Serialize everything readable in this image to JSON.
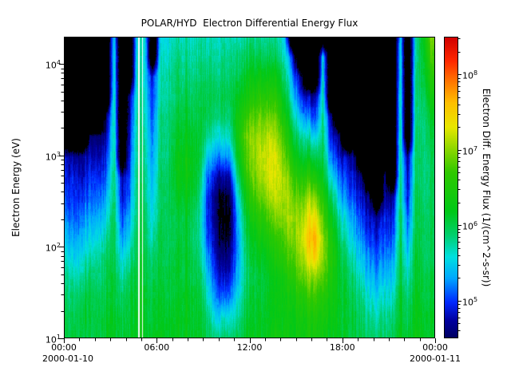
{
  "chart_data": {
    "type": "heatmap",
    "title": "POLAR/HYD  Electron Differential Energy Flux",
    "x": {
      "start_date": "2000-01-10",
      "end_date": "2000-01-11",
      "range_hours": [
        0,
        24
      ],
      "major_tick_hours": [
        0,
        6,
        12,
        18,
        24
      ],
      "major_tick_labels": [
        "00:00",
        "06:00",
        "12:00",
        "18:00",
        "00:00"
      ],
      "minor_tick_step_hours": 1
    },
    "y": {
      "label": "Electron Energy (eV)",
      "scale": "log",
      "range_log10_ev": [
        1.0,
        4.3
      ],
      "tick_exponents": [
        1,
        2,
        3,
        4
      ]
    },
    "colorbar": {
      "label": "Electron Diff. Energy Flux (1/(cm^2-s-sr))",
      "scale": "log",
      "range_log10": [
        4.5,
        8.5
      ],
      "tick_exponents": [
        5,
        6,
        7,
        8
      ]
    },
    "colormap": [
      [
        0.0,
        "#000060"
      ],
      [
        0.06,
        "#0000A0"
      ],
      [
        0.12,
        "#0028FF"
      ],
      [
        0.2,
        "#00A8FF"
      ],
      [
        0.27,
        "#00E0E0"
      ],
      [
        0.34,
        "#00D070"
      ],
      [
        0.42,
        "#00C818"
      ],
      [
        0.55,
        "#30C800"
      ],
      [
        0.63,
        "#90D800"
      ],
      [
        0.7,
        "#E8E800"
      ],
      [
        0.78,
        "#FFC000"
      ],
      [
        0.85,
        "#FF7800"
      ],
      [
        0.92,
        "#FF2800"
      ],
      [
        1.0,
        "#D00000"
      ]
    ],
    "black_below_log10": 4.45,
    "grid": {
      "time_step_hours": 0.5,
      "energy_bins": 16,
      "no_data_value": 0,
      "data_gap_hours": [
        [
          4.78,
          4.88
        ],
        [
          5.05,
          5.13
        ]
      ],
      "columns_note": "48 half-hour columns; each lists log10 flux for 16 log-spaced energy bins from 10 eV (first) to 2e4 eV (last); 0 = below scale (black)",
      "columns": [
        [
          6.0,
          6.0,
          5.9,
          5.8,
          5.6,
          5.4,
          5.2,
          5.0,
          4.9,
          4.8,
          0,
          0,
          0,
          0,
          0,
          0
        ],
        [
          6.1,
          6.0,
          5.9,
          5.7,
          5.5,
          5.3,
          5.1,
          5.0,
          4.9,
          4.7,
          0,
          0,
          0,
          0,
          0,
          0
        ],
        [
          6.0,
          6.1,
          6.0,
          5.8,
          5.6,
          5.4,
          5.2,
          5.0,
          4.8,
          4.7,
          0,
          0,
          0,
          0,
          0,
          0
        ],
        [
          6.0,
          6.0,
          6.0,
          5.9,
          5.7,
          5.5,
          5.3,
          5.1,
          5.0,
          4.8,
          4.6,
          0,
          0,
          0,
          0,
          0
        ],
        [
          6.1,
          6.1,
          6.0,
          5.9,
          5.8,
          5.6,
          5.4,
          5.2,
          5.0,
          4.8,
          4.6,
          0,
          0,
          0,
          0,
          0
        ],
        [
          6.1,
          6.1,
          6.0,
          6.0,
          5.9,
          5.7,
          5.5,
          5.3,
          5.1,
          4.9,
          4.7,
          4.5,
          0,
          0,
          0,
          0
        ],
        [
          6.2,
          6.2,
          6.1,
          6.1,
          6.0,
          6.0,
          6.0,
          5.9,
          5.9,
          5.8,
          5.8,
          5.7,
          5.7,
          5.6,
          5.6,
          5.5
        ],
        [
          6.0,
          6.0,
          5.9,
          5.7,
          5.5,
          5.2,
          5.0,
          4.8,
          4.7,
          0,
          0,
          0,
          0,
          0,
          0,
          0
        ],
        [
          6.1,
          6.0,
          6.0,
          5.9,
          5.7,
          5.5,
          5.3,
          5.1,
          5.0,
          4.9,
          4.8,
          4.7,
          4.6,
          0,
          0,
          0
        ],
        [
          6.3,
          6.3,
          6.2,
          6.2,
          6.1,
          6.1,
          6.0,
          6.0,
          6.0,
          5.9,
          5.9,
          5.9,
          5.8,
          5.8,
          5.8,
          5.7
        ],
        [
          6.2,
          6.2,
          6.2,
          6.1,
          6.1,
          6.0,
          6.0,
          5.9,
          5.9,
          5.8,
          5.8,
          5.7,
          5.7,
          5.6,
          5.6,
          5.6
        ],
        [
          6.1,
          6.0,
          6.0,
          5.9,
          5.8,
          5.6,
          5.5,
          5.4,
          5.3,
          5.2,
          5.1,
          5.0,
          4.9,
          4.8,
          0,
          0
        ],
        [
          6.2,
          6.1,
          6.1,
          6.0,
          6.0,
          6.0,
          5.9,
          5.9,
          5.9,
          5.8,
          5.8,
          5.8,
          5.7,
          5.7,
          5.6,
          5.5
        ],
        [
          6.2,
          6.2,
          6.1,
          6.1,
          6.0,
          6.0,
          6.0,
          6.0,
          6.0,
          5.9,
          5.9,
          5.9,
          5.8,
          5.8,
          5.7,
          5.6
        ],
        [
          6.2,
          6.2,
          6.1,
          6.1,
          6.1,
          6.0,
          6.0,
          6.1,
          6.2,
          6.2,
          6.1,
          6.0,
          5.9,
          5.9,
          5.8,
          5.7
        ],
        [
          6.2,
          6.2,
          6.2,
          6.1,
          6.1,
          6.1,
          6.1,
          6.2,
          6.3,
          6.3,
          6.2,
          6.1,
          6.0,
          5.9,
          5.8,
          5.7
        ],
        [
          6.2,
          6.2,
          6.2,
          6.1,
          6.1,
          6.0,
          6.1,
          6.2,
          6.3,
          6.3,
          6.2,
          6.1,
          6.0,
          5.9,
          5.8,
          5.7
        ],
        [
          6.2,
          6.1,
          6.1,
          6.0,
          5.9,
          5.8,
          5.8,
          5.9,
          6.0,
          6.1,
          6.1,
          6.0,
          6.0,
          5.9,
          5.8,
          5.7
        ],
        [
          6.0,
          5.9,
          5.7,
          5.5,
          5.3,
          5.1,
          5.0,
          5.0,
          5.2,
          5.5,
          5.8,
          6.0,
          6.0,
          5.9,
          5.8,
          5.7
        ],
        [
          5.9,
          5.6,
          5.3,
          5.1,
          4.9,
          4.8,
          4.7,
          4.7,
          4.9,
          5.3,
          5.7,
          5.9,
          6.0,
          5.9,
          5.8,
          5.7
        ],
        [
          5.9,
          5.6,
          5.1,
          4.8,
          4.6,
          4.4,
          4.3,
          4.4,
          4.7,
          5.2,
          5.6,
          5.9,
          6.0,
          5.9,
          5.8,
          5.7
        ],
        [
          5.9,
          5.6,
          5.2,
          4.9,
          4.7,
          4.5,
          4.4,
          4.5,
          4.8,
          5.3,
          5.7,
          5.9,
          6.0,
          5.9,
          5.8,
          5.7
        ],
        [
          6.0,
          5.8,
          5.6,
          5.4,
          5.3,
          5.3,
          5.4,
          5.6,
          5.9,
          6.2,
          6.4,
          6.4,
          6.2,
          6.0,
          5.9,
          5.7
        ],
        [
          6.1,
          6.0,
          5.9,
          5.8,
          5.8,
          5.9,
          6.0,
          6.2,
          6.5,
          6.7,
          6.8,
          6.6,
          6.3,
          6.1,
          5.9,
          5.7
        ],
        [
          6.2,
          6.1,
          6.1,
          6.0,
          6.1,
          6.2,
          6.4,
          6.7,
          6.9,
          7.0,
          7.0,
          6.8,
          6.5,
          6.2,
          6.0,
          5.8
        ],
        [
          6.2,
          6.2,
          6.1,
          6.1,
          6.2,
          6.4,
          6.6,
          6.9,
          7.1,
          7.2,
          7.1,
          6.9,
          6.6,
          6.3,
          6.0,
          5.8
        ],
        [
          6.3,
          6.2,
          6.2,
          6.2,
          6.3,
          6.5,
          6.8,
          7.1,
          7.3,
          7.3,
          7.2,
          6.9,
          6.6,
          6.3,
          6.0,
          5.8
        ],
        [
          6.3,
          6.2,
          6.2,
          6.2,
          6.4,
          6.6,
          6.9,
          7.1,
          7.2,
          7.2,
          7.0,
          6.8,
          6.5,
          6.2,
          5.9,
          5.7
        ],
        [
          6.3,
          6.3,
          6.3,
          6.4,
          6.6,
          6.8,
          7.0,
          7.1,
          7.1,
          6.9,
          6.7,
          6.4,
          6.1,
          5.9,
          5.7,
          5.5
        ],
        [
          6.3,
          6.3,
          6.4,
          6.6,
          6.8,
          7.0,
          7.1,
          7.0,
          6.8,
          6.5,
          6.2,
          5.9,
          5.6,
          5.3,
          5.0,
          0
        ],
        [
          6.3,
          6.4,
          6.5,
          6.8,
          7.0,
          7.1,
          7.0,
          6.8,
          6.5,
          6.1,
          5.8,
          5.4,
          5.0,
          4.7,
          0,
          0
        ],
        [
          6.4,
          6.4,
          6.6,
          6.9,
          7.3,
          7.5,
          7.3,
          7.0,
          6.6,
          6.1,
          5.7,
          5.2,
          4.8,
          0,
          0,
          0
        ],
        [
          6.4,
          6.5,
          6.7,
          7.0,
          7.5,
          7.7,
          7.4,
          7.0,
          6.5,
          6.0,
          5.5,
          5.0,
          4.7,
          0,
          0,
          0
        ],
        [
          6.3,
          6.4,
          6.5,
          6.8,
          7.0,
          7.0,
          6.8,
          6.5,
          6.2,
          6.0,
          5.9,
          5.8,
          5.7,
          5.6,
          5.5,
          0
        ],
        [
          6.2,
          6.3,
          6.4,
          6.5,
          6.6,
          6.5,
          6.3,
          6.0,
          5.6,
          5.2,
          4.9,
          4.7,
          0,
          0,
          0,
          0
        ],
        [
          6.2,
          6.2,
          6.2,
          6.2,
          6.2,
          6.0,
          5.8,
          5.5,
          5.2,
          4.9,
          4.7,
          0,
          0,
          0,
          0,
          0
        ],
        [
          6.1,
          6.1,
          6.1,
          6.0,
          5.9,
          5.7,
          5.5,
          5.2,
          5.0,
          4.8,
          0,
          0,
          0,
          0,
          0,
          0
        ],
        [
          6.0,
          6.0,
          5.9,
          5.8,
          5.6,
          5.4,
          5.2,
          5.0,
          4.8,
          4.6,
          0,
          0,
          0,
          0,
          0,
          0
        ],
        [
          6.0,
          5.9,
          5.8,
          5.6,
          5.4,
          5.2,
          5.0,
          4.8,
          4.6,
          0,
          0,
          0,
          0,
          0,
          0,
          0
        ],
        [
          5.9,
          5.8,
          5.6,
          5.4,
          5.2,
          5.0,
          4.8,
          4.6,
          0,
          0,
          0,
          0,
          0,
          0,
          0,
          0
        ],
        [
          5.9,
          5.7,
          5.5,
          5.3,
          5.1,
          4.9,
          4.7,
          0,
          0,
          0,
          0,
          0,
          0,
          0,
          0,
          0
        ],
        [
          5.9,
          5.8,
          5.6,
          5.4,
          5.2,
          5.0,
          4.9,
          4.7,
          4.6,
          0,
          0,
          0,
          0,
          0,
          0,
          0
        ],
        [
          6.0,
          5.9,
          5.7,
          5.5,
          5.3,
          5.1,
          4.9,
          4.7,
          0,
          0,
          0,
          0,
          0,
          0,
          0,
          0
        ],
        [
          6.2,
          6.1,
          6.1,
          6.0,
          6.0,
          5.9,
          5.9,
          5.8,
          5.8,
          5.7,
          5.7,
          5.6,
          5.6,
          5.5,
          5.5,
          5.4
        ],
        [
          6.0,
          5.9,
          5.8,
          5.6,
          5.4,
          5.2,
          5.0,
          4.8,
          4.7,
          4.6,
          0,
          0,
          0,
          0,
          0,
          0
        ],
        [
          6.3,
          6.2,
          6.2,
          6.1,
          6.1,
          6.0,
          6.0,
          6.0,
          5.9,
          5.9,
          5.9,
          5.8,
          5.8,
          5.8,
          5.7,
          5.7
        ],
        [
          6.2,
          6.2,
          6.1,
          6.1,
          6.0,
          6.0,
          6.0,
          5.9,
          5.9,
          5.9,
          5.9,
          5.9,
          6.0,
          6.1,
          6.2,
          6.3
        ],
        [
          6.2,
          6.2,
          6.1,
          6.1,
          6.0,
          6.0,
          6.0,
          6.0,
          6.0,
          6.0,
          6.1,
          6.2,
          6.4,
          6.6,
          6.8,
          7.0
        ]
      ]
    }
  }
}
